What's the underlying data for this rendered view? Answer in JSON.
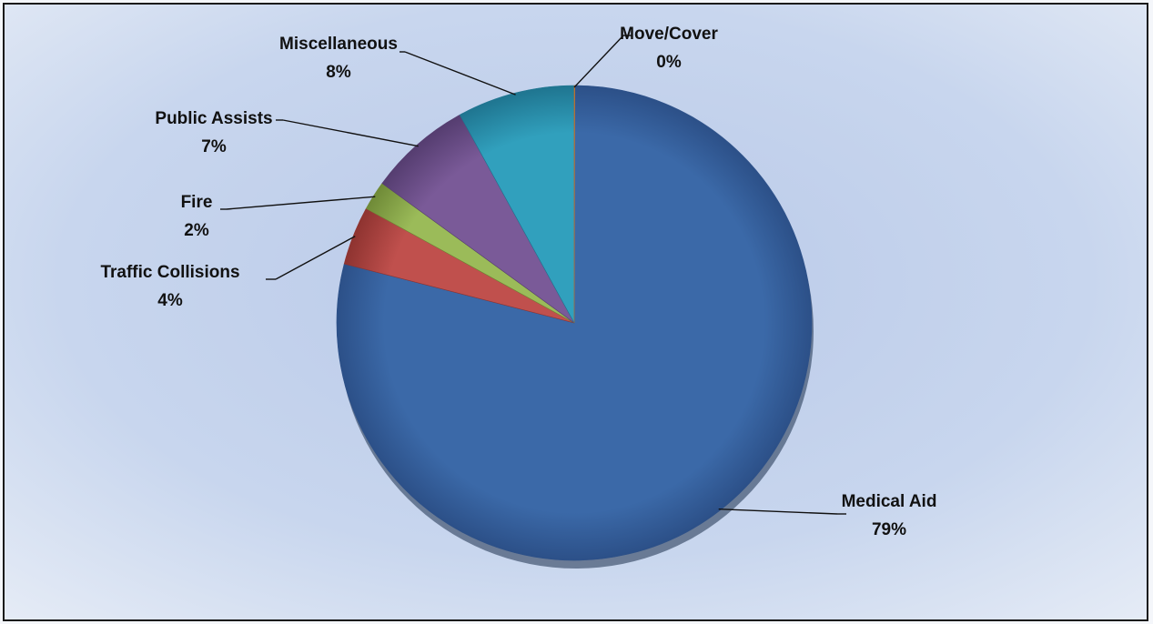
{
  "chart_data": {
    "type": "pie",
    "title": "",
    "slices": [
      {
        "label": "Medical Aid",
        "value": 79,
        "value_label": "79%",
        "color": "#3b69a8",
        "color_dark": "#2c5088"
      },
      {
        "label": "Traffic Collisions",
        "value": 4,
        "value_label": "4%",
        "color": "#c0504d",
        "color_dark": "#8e3330"
      },
      {
        "label": "Fire",
        "value": 2,
        "value_label": "2%",
        "color": "#9bbb59",
        "color_dark": "#6f8a37"
      },
      {
        "label": "Public Assists",
        "value": 7,
        "value_label": "7%",
        "color": "#7a5a98",
        "color_dark": "#553d70"
      },
      {
        "label": "Miscellaneous",
        "value": 8,
        "value_label": "8%",
        "color": "#31a0bd",
        "color_dark": "#1f7590"
      },
      {
        "label": "Move/Cover",
        "value": 0,
        "value_label": "0%",
        "color": "#f79646",
        "color_dark": "#c0702c"
      }
    ],
    "legend": "none",
    "data_labels": "outside-with-leader-lines"
  }
}
